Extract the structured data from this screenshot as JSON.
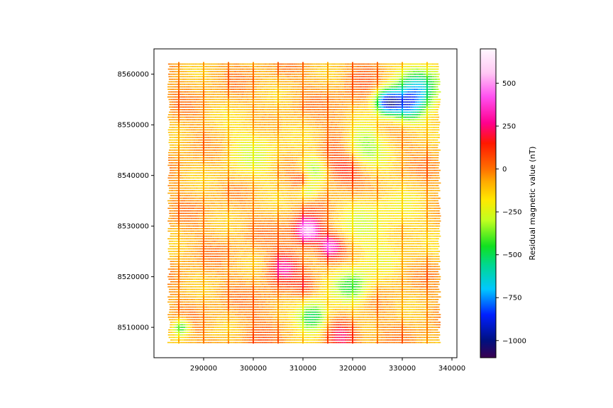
{
  "chart_data": {
    "type": "scatter",
    "title": "",
    "xlabel": "",
    "ylabel": "",
    "xlim": [
      280000,
      341000
    ],
    "ylim": [
      8504000,
      8565000
    ],
    "x_ticks": [
      290000,
      300000,
      310000,
      320000,
      330000,
      340000
    ],
    "y_ticks": [
      8510000,
      8520000,
      8530000,
      8540000,
      8550000,
      8560000
    ],
    "survey": {
      "line_x_start": 283000,
      "line_x_end": 337500,
      "line_y_start": 8507000,
      "line_y_end": 8562000,
      "line_spacing": 500,
      "tie_lines_x": [
        285000,
        290000,
        295000,
        300000,
        305000,
        310000,
        315000,
        320000,
        325000,
        330000,
        335000
      ]
    },
    "colorbar": {
      "label": "Residual magnetic value (nT)",
      "colormap": "gist_ncar-like",
      "vmin": -1100,
      "vmax": 700,
      "ticks": [
        500,
        250,
        0,
        -250,
        -500,
        -750,
        -1000
      ],
      "color_stops": [
        {
          "value": -1100,
          "color": "#3a0050"
        },
        {
          "value": -1000,
          "color": "#001080"
        },
        {
          "value": -850,
          "color": "#0020ff"
        },
        {
          "value": -700,
          "color": "#00c8ff"
        },
        {
          "value": -560,
          "color": "#00d890"
        },
        {
          "value": -450,
          "color": "#10e020"
        },
        {
          "value": -300,
          "color": "#c0ff20"
        },
        {
          "value": -180,
          "color": "#ffe800"
        },
        {
          "value": -70,
          "color": "#ffa800"
        },
        {
          "value": 0,
          "color": "#ff7000"
        },
        {
          "value": 150,
          "color": "#ff1800"
        },
        {
          "value": 270,
          "color": "#ff0090"
        },
        {
          "value": 420,
          "color": "#ff50f0"
        },
        {
          "value": 560,
          "color": "#ffc8f4"
        },
        {
          "value": 700,
          "color": "#fff8ff"
        }
      ]
    },
    "anomalies": [
      {
        "x": 311000,
        "y": 8529000,
        "value": 600,
        "spread": 1800
      },
      {
        "x": 315500,
        "y": 8526000,
        "value": 450,
        "spread": 1700
      },
      {
        "x": 318500,
        "y": 8541000,
        "value": 260,
        "spread": 2500
      },
      {
        "x": 310000,
        "y": 8539000,
        "value": 230,
        "spread": 1500
      },
      {
        "x": 306000,
        "y": 8522000,
        "value": 250,
        "spread": 2000
      },
      {
        "x": 318000,
        "y": 8508500,
        "value": 320,
        "spread": 2200
      },
      {
        "x": 327000,
        "y": 8554500,
        "value": -800,
        "spread": 1800
      },
      {
        "x": 333500,
        "y": 8557500,
        "value": -550,
        "spread": 3200
      },
      {
        "x": 331000,
        "y": 8553500,
        "value": -500,
        "spread": 2200
      },
      {
        "x": 312000,
        "y": 8512000,
        "value": -520,
        "spread": 2200
      },
      {
        "x": 320000,
        "y": 8518000,
        "value": -380,
        "spread": 2500
      },
      {
        "x": 322000,
        "y": 8546000,
        "value": -300,
        "spread": 3000
      },
      {
        "x": 312000,
        "y": 8541000,
        "value": -320,
        "spread": 2000
      },
      {
        "x": 311000,
        "y": 8537000,
        "value": -280,
        "spread": 1500
      },
      {
        "x": 285500,
        "y": 8510000,
        "value": -420,
        "spread": 1200
      },
      {
        "x": 310500,
        "y": 8518000,
        "value": 150,
        "spread": 1500
      },
      {
        "x": 300000,
        "y": 8545000,
        "value": -150,
        "spread": 5000
      },
      {
        "x": 325000,
        "y": 8530000,
        "value": -170,
        "spread": 6000
      }
    ]
  }
}
